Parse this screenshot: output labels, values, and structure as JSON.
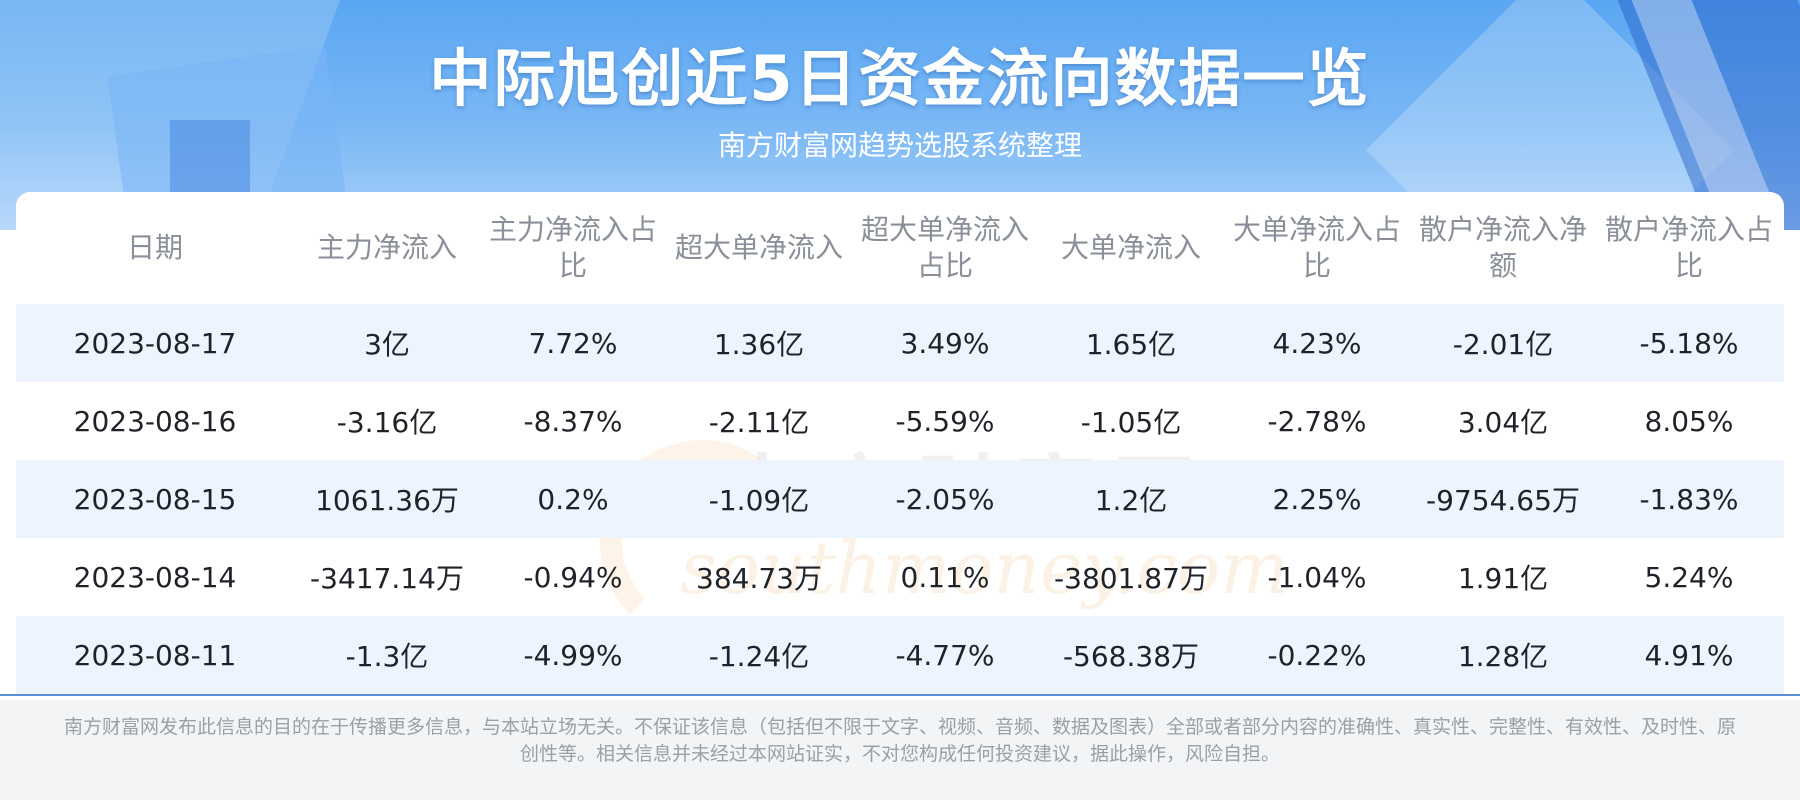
{
  "header": {
    "title": "中际旭创近5日资金流向数据一览",
    "subtitle": "南方财富网趋势选股系统整理"
  },
  "watermark": {
    "cn": "南方财富网",
    "en": "southmoney.com"
  },
  "table": {
    "columns": [
      "日期",
      "主力净流入",
      "主力净流入占比",
      "超大单净流入",
      "超大单净流入占比",
      "大单净流入",
      "大单净流入占比",
      "散户净流入净额",
      "散户净流入占比"
    ],
    "rows": [
      [
        "2023-08-17",
        "3亿",
        "7.72%",
        "1.36亿",
        "3.49%",
        "1.65亿",
        "4.23%",
        "-2.01亿",
        "-5.18%"
      ],
      [
        "2023-08-16",
        "-3.16亿",
        "-8.37%",
        "-2.11亿",
        "-5.59%",
        "-1.05亿",
        "-2.78%",
        "3.04亿",
        "8.05%"
      ],
      [
        "2023-08-15",
        "1061.36万",
        "0.2%",
        "-1.09亿",
        "-2.05%",
        "1.2亿",
        "2.25%",
        "-9754.65万",
        "-1.83%"
      ],
      [
        "2023-08-14",
        "-3417.14万",
        "-0.94%",
        "384.73万",
        "0.11%",
        "-3801.87万",
        "-1.04%",
        "1.91亿",
        "5.24%"
      ],
      [
        "2023-08-11",
        "-1.3亿",
        "-4.99%",
        "-1.24亿",
        "-4.77%",
        "-568.38万",
        "-0.22%",
        "1.28亿",
        "4.91%"
      ]
    ]
  },
  "footer": {
    "disclaimer": "南方财富网发布此信息的目的在于传播更多信息，与本站立场无关。不保证该信息（包括但不限于文字、视频、音频、数据及图表）全部或者部分内容的准确性、真实性、完整性、有效性、及时性、原创性等。相关信息并未经过本网站证实，不对您构成任何投资建议，据此操作，风险自担。"
  }
}
